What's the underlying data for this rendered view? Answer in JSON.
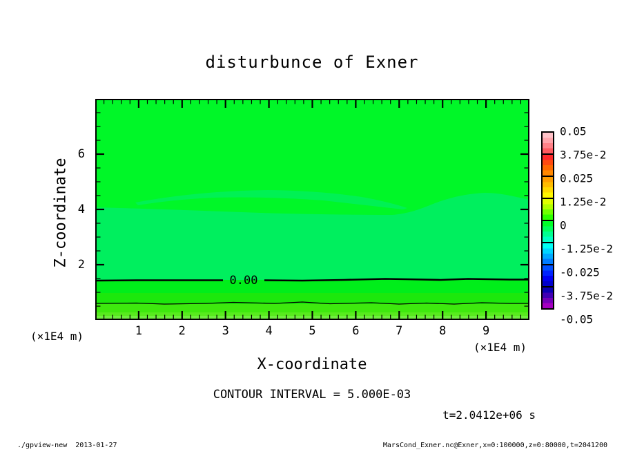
{
  "title": "disturbunce of Exner",
  "axes": {
    "x": {
      "label": "X-coordinate",
      "units": "(×1E4 m)",
      "range": [
        0,
        10
      ],
      "major_ticks": [
        1,
        2,
        3,
        4,
        5,
        6,
        7,
        8,
        9
      ],
      "tick_labels": [
        "1",
        "2",
        "3",
        "4",
        "5",
        "6",
        "7",
        "8",
        "9"
      ],
      "minor_step": 0.2
    },
    "z": {
      "label": "Z-coordinate",
      "units": "(×1E4 m)",
      "range": [
        0,
        8
      ],
      "major_ticks": [
        2,
        4,
        6
      ],
      "tick_labels": [
        "2",
        "4",
        "6"
      ],
      "minor_step": 0.5
    }
  },
  "colorbar": {
    "labels": [
      "0.05",
      "3.75e-2",
      "0.025",
      "1.25e-2",
      "0",
      "-1.25e-2",
      "-0.025",
      "-3.75e-2",
      "-0.05"
    ],
    "segments": [
      {
        "colors": [
          "#ffc2c8",
          "#ffa4aa",
          "#ff8288",
          "#ff5a60"
        ]
      },
      {
        "colors": [
          "#ff2a2a",
          "#ff4a10",
          "#ff6a00",
          "#ff8800"
        ]
      },
      {
        "colors": [
          "#ff9e00",
          "#ffbc00",
          "#ffda00",
          "#fff800"
        ]
      },
      {
        "colors": [
          "#e0ff00",
          "#b0ff00",
          "#70ff00",
          "#2cff00"
        ]
      },
      {
        "colors": [
          "#00ff28",
          "#00ff5c",
          "#00ff90",
          "#00ffc4"
        ]
      },
      {
        "colors": [
          "#00fff4",
          "#00d4ff",
          "#00a8ff",
          "#007cff"
        ]
      },
      {
        "colors": [
          "#0050ff",
          "#0024ff",
          "#0000f4",
          "#0000cc"
        ]
      },
      {
        "colors": [
          "#0c00b4",
          "#4000b4",
          "#7400b8",
          "#a400c0"
        ]
      }
    ]
  },
  "annotations": {
    "contour_label": "0.00",
    "contour_interval": "CONTOUR INTERVAL = 5.000E-03",
    "time": "t=2.0412e+06 s"
  },
  "footer": {
    "left": "./gpview-new  2013-01-27",
    "right": "MarsCond_Exner.nc@Exner,x=0:100000,z=0:80000,t=2041200"
  },
  "chart_data": {
    "type": "heatmap",
    "subtype": "filled-contour",
    "title": "disturbunce of Exner",
    "xlabel": "X-coordinate (×1E4 m)",
    "ylabel": "Z-coordinate (×1E4 m)",
    "xlim": [
      0,
      10
    ],
    "ylim": [
      0,
      8
    ],
    "grid": false,
    "legend_position": "right-colorbar",
    "colorbar_levels": [
      0.05,
      0.0375,
      0.025,
      0.0125,
      0,
      -0.0125,
      -0.025,
      -0.0375,
      -0.05
    ],
    "contour_interval": 0.005,
    "time_seconds": 2041200,
    "contours": [
      {
        "level": 0.0,
        "label": "0.00",
        "z_approx": 1.45,
        "style": "thick",
        "label_x_approx": 3.4
      },
      {
        "level": 0.005,
        "label": null,
        "z_approx": 0.55,
        "style": "thin"
      }
    ],
    "shade_bands": [
      {
        "z_from": 4.2,
        "z_to": 8.0,
        "approx_value": 0.001,
        "color": "#00f728"
      },
      {
        "z_from": 1.45,
        "z_to": 4.2,
        "approx_value": -0.002,
        "color": "#00ef5e"
      },
      {
        "z_from": 1.0,
        "z_to": 1.45,
        "approx_value": 0.002,
        "color": "#00ee1a"
      },
      {
        "z_from": 0.58,
        "z_to": 1.0,
        "approx_value": 0.005,
        "color": "#1ce80c"
      },
      {
        "z_from": 0.28,
        "z_to": 0.58,
        "approx_value": 0.008,
        "color": "#3ee90e"
      },
      {
        "z_from": 0.15,
        "z_to": 0.28,
        "approx_value": 0.01,
        "color": "#58eb1e"
      },
      {
        "z_from": 0.0,
        "z_to": 0.15,
        "approx_value": 0.012,
        "color": "#70ef40"
      }
    ],
    "upper_patch": {
      "x_from": 0.9,
      "x_to": 7.2,
      "z_from": 4.2,
      "z_to": 4.8,
      "approx_value": -0.001,
      "color": "#00f154"
    }
  }
}
